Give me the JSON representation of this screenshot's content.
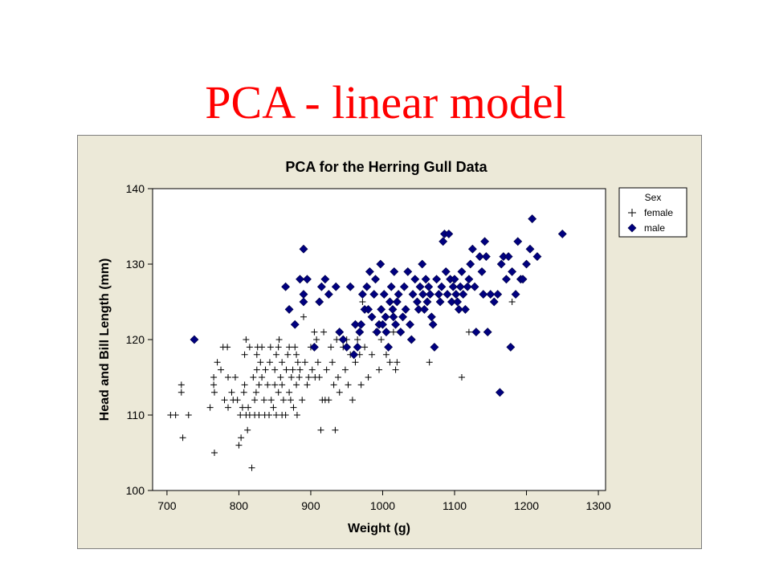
{
  "slide": {
    "title": "PCA - linear model"
  },
  "chart_data": {
    "type": "scatter",
    "title": "PCA for the Herring Gull Data",
    "xlabel": "Weight (g)",
    "ylabel": "Head and Bill Length (mm)",
    "xlim": [
      680,
      1310
    ],
    "ylim": [
      100,
      140
    ],
    "xticks": [
      "700",
      "800",
      "900",
      "1000",
      "1100",
      "1200",
      "1300"
    ],
    "yticks": [
      "100",
      "110",
      "120",
      "130",
      "140"
    ],
    "legend": {
      "title": "Sex",
      "placement": "top-right"
    },
    "series": [
      {
        "name": "female",
        "marker": "plus",
        "color": "#000000",
        "points": [
          [
            705,
            110
          ],
          [
            712,
            110
          ],
          [
            720,
            114
          ],
          [
            720,
            113
          ],
          [
            722,
            107
          ],
          [
            730,
            110
          ],
          [
            760,
            111
          ],
          [
            765,
            115
          ],
          [
            765,
            114
          ],
          [
            766,
            113
          ],
          [
            766,
            105
          ],
          [
            770,
            117
          ],
          [
            775,
            116
          ],
          [
            778,
            119
          ],
          [
            780,
            112
          ],
          [
            784,
            119
          ],
          [
            785,
            111
          ],
          [
            785,
            115
          ],
          [
            790,
            113
          ],
          [
            792,
            112
          ],
          [
            795,
            115
          ],
          [
            798,
            112
          ],
          [
            800,
            106
          ],
          [
            802,
            110
          ],
          [
            803,
            107
          ],
          [
            805,
            111
          ],
          [
            807,
            113
          ],
          [
            808,
            114
          ],
          [
            808,
            118
          ],
          [
            810,
            110
          ],
          [
            810,
            120
          ],
          [
            812,
            108
          ],
          [
            813,
            111
          ],
          [
            815,
            110
          ],
          [
            815,
            119
          ],
          [
            818,
            103
          ],
          [
            820,
            115
          ],
          [
            822,
            112
          ],
          [
            822,
            110
          ],
          [
            824,
            113
          ],
          [
            825,
            118
          ],
          [
            825,
            116
          ],
          [
            826,
            119
          ],
          [
            828,
            110
          ],
          [
            828,
            114
          ],
          [
            830,
            117
          ],
          [
            832,
            115
          ],
          [
            832,
            119
          ],
          [
            835,
            112
          ],
          [
            836,
            110
          ],
          [
            837,
            116
          ],
          [
            840,
            114
          ],
          [
            842,
            110
          ],
          [
            843,
            117
          ],
          [
            844,
            119
          ],
          [
            845,
            112
          ],
          [
            848,
            111
          ],
          [
            850,
            116
          ],
          [
            850,
            114
          ],
          [
            852,
            110
          ],
          [
            852,
            118
          ],
          [
            855,
            113
          ],
          [
            855,
            119
          ],
          [
            856,
            120
          ],
          [
            858,
            115
          ],
          [
            860,
            114
          ],
          [
            860,
            117
          ],
          [
            860,
            110
          ],
          [
            862,
            112
          ],
          [
            865,
            110
          ],
          [
            866,
            116
          ],
          [
            868,
            118
          ],
          [
            870,
            113
          ],
          [
            870,
            119
          ],
          [
            872,
            112
          ],
          [
            873,
            115
          ],
          [
            875,
            116
          ],
          [
            876,
            111
          ],
          [
            878,
            119
          ],
          [
            880,
            118
          ],
          [
            880,
            114
          ],
          [
            881,
            110
          ],
          [
            882,
            117
          ],
          [
            884,
            115
          ],
          [
            885,
            116
          ],
          [
            888,
            112
          ],
          [
            890,
            123
          ],
          [
            892,
            117
          ],
          [
            895,
            114
          ],
          [
            897,
            115
          ],
          [
            900,
            119
          ],
          [
            902,
            116
          ],
          [
            905,
            121
          ],
          [
            906,
            115
          ],
          [
            908,
            120
          ],
          [
            910,
            117
          ],
          [
            912,
            115
          ],
          [
            914,
            108
          ],
          [
            916,
            112
          ],
          [
            918,
            121
          ],
          [
            920,
            112
          ],
          [
            922,
            116
          ],
          [
            925,
            112
          ],
          [
            928,
            119
          ],
          [
            930,
            117
          ],
          [
            932,
            114
          ],
          [
            934,
            108
          ],
          [
            936,
            120
          ],
          [
            938,
            115
          ],
          [
            940,
            113
          ],
          [
            945,
            119
          ],
          [
            948,
            116
          ],
          [
            950,
            120
          ],
          [
            952,
            114
          ],
          [
            955,
            118
          ],
          [
            958,
            112
          ],
          [
            962,
            117
          ],
          [
            965,
            120
          ],
          [
            968,
            118
          ],
          [
            970,
            114
          ],
          [
            972,
            125
          ],
          [
            975,
            119
          ],
          [
            980,
            115
          ],
          [
            985,
            118
          ],
          [
            990,
            121
          ],
          [
            995,
            116
          ],
          [
            998,
            120
          ],
          [
            1005,
            118
          ],
          [
            1010,
            117
          ],
          [
            1015,
            121
          ],
          [
            1018,
            116
          ],
          [
            1020,
            117
          ],
          [
            1065,
            117
          ],
          [
            1110,
            115
          ],
          [
            1120,
            121
          ],
          [
            1180,
            125
          ]
        ]
      },
      {
        "name": "male",
        "marker": "diamond",
        "color": "#00007f",
        "points": [
          [
            738,
            120
          ],
          [
            865,
            127
          ],
          [
            870,
            124
          ],
          [
            878,
            122
          ],
          [
            885,
            128
          ],
          [
            890,
            132
          ],
          [
            890,
            126
          ],
          [
            890,
            125
          ],
          [
            895,
            128
          ],
          [
            905,
            119
          ],
          [
            912,
            125
          ],
          [
            915,
            127
          ],
          [
            920,
            128
          ],
          [
            925,
            126
          ],
          [
            935,
            127
          ],
          [
            940,
            121
          ],
          [
            945,
            120
          ],
          [
            950,
            119
          ],
          [
            955,
            127
          ],
          [
            960,
            118
          ],
          [
            962,
            122
          ],
          [
            965,
            119
          ],
          [
            968,
            121
          ],
          [
            970,
            122
          ],
          [
            972,
            126
          ],
          [
            975,
            124
          ],
          [
            978,
            127
          ],
          [
            980,
            124
          ],
          [
            982,
            129
          ],
          [
            985,
            123
          ],
          [
            988,
            126
          ],
          [
            990,
            128
          ],
          [
            992,
            121
          ],
          [
            995,
            122
          ],
          [
            997,
            130
          ],
          [
            998,
            124
          ],
          [
            1000,
            122
          ],
          [
            1002,
            126
          ],
          [
            1004,
            123
          ],
          [
            1005,
            121
          ],
          [
            1008,
            119
          ],
          [
            1010,
            125
          ],
          [
            1012,
            127
          ],
          [
            1014,
            124
          ],
          [
            1015,
            123
          ],
          [
            1016,
            129
          ],
          [
            1018,
            122
          ],
          [
            1020,
            125
          ],
          [
            1022,
            126
          ],
          [
            1025,
            121
          ],
          [
            1028,
            123
          ],
          [
            1030,
            127
          ],
          [
            1032,
            124
          ],
          [
            1035,
            129
          ],
          [
            1038,
            122
          ],
          [
            1040,
            120
          ],
          [
            1042,
            126
          ],
          [
            1045,
            128
          ],
          [
            1048,
            125
          ],
          [
            1050,
            124
          ],
          [
            1052,
            127
          ],
          [
            1055,
            130
          ],
          [
            1056,
            126
          ],
          [
            1058,
            124
          ],
          [
            1060,
            128
          ],
          [
            1062,
            125
          ],
          [
            1064,
            127
          ],
          [
            1066,
            126
          ],
          [
            1068,
            123
          ],
          [
            1070,
            122
          ],
          [
            1072,
            119
          ],
          [
            1075,
            128
          ],
          [
            1078,
            126
          ],
          [
            1080,
            125
          ],
          [
            1082,
            127
          ],
          [
            1084,
            133
          ],
          [
            1086,
            134
          ],
          [
            1088,
            129
          ],
          [
            1090,
            126
          ],
          [
            1092,
            134
          ],
          [
            1094,
            128
          ],
          [
            1096,
            125
          ],
          [
            1098,
            127
          ],
          [
            1100,
            128
          ],
          [
            1102,
            126
          ],
          [
            1104,
            125
          ],
          [
            1106,
            124
          ],
          [
            1108,
            127
          ],
          [
            1110,
            129
          ],
          [
            1112,
            126
          ],
          [
            1115,
            124
          ],
          [
            1118,
            127
          ],
          [
            1120,
            128
          ],
          [
            1122,
            130
          ],
          [
            1125,
            132
          ],
          [
            1128,
            127
          ],
          [
            1130,
            121
          ],
          [
            1135,
            131
          ],
          [
            1138,
            129
          ],
          [
            1140,
            126
          ],
          [
            1142,
            133
          ],
          [
            1144,
            131
          ],
          [
            1146,
            121
          ],
          [
            1150,
            126
          ],
          [
            1155,
            125
          ],
          [
            1160,
            126
          ],
          [
            1163,
            113
          ],
          [
            1165,
            130
          ],
          [
            1168,
            131
          ],
          [
            1172,
            128
          ],
          [
            1175,
            131
          ],
          [
            1178,
            119
          ],
          [
            1180,
            129
          ],
          [
            1185,
            126
          ],
          [
            1188,
            133
          ],
          [
            1192,
            128
          ],
          [
            1195,
            128
          ],
          [
            1200,
            130
          ],
          [
            1205,
            132
          ],
          [
            1208,
            136
          ],
          [
            1215,
            131
          ],
          [
            1250,
            134
          ]
        ]
      }
    ]
  }
}
